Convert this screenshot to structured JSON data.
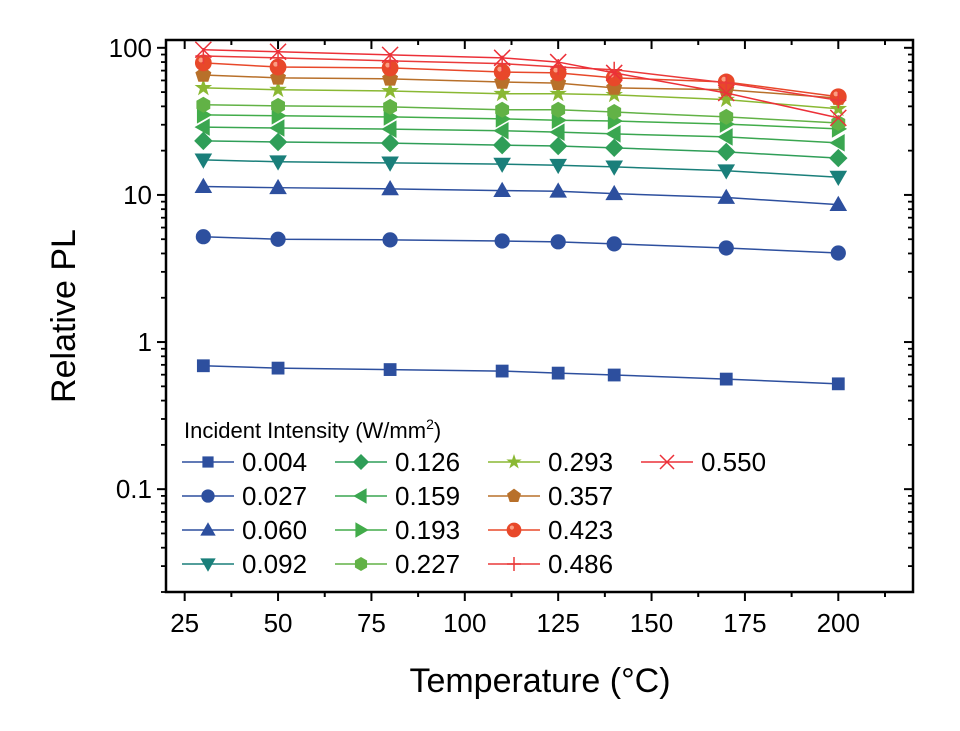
{
  "chart_data": {
    "type": "line",
    "title": "",
    "xlabel": "Temperature (°C)",
    "ylabel": "Relative PL",
    "xlim": [
      20,
      220
    ],
    "ylim": [
      0.02,
      113
    ],
    "yscale": "log",
    "grid": false,
    "x_ticks": [
      25,
      50,
      75,
      100,
      125,
      150,
      175,
      200
    ],
    "x_tick_labels": [
      "25",
      "50",
      "75",
      "100",
      "125",
      "150",
      "175",
      "200"
    ],
    "y_ticks": [
      0.1,
      1,
      10,
      100
    ],
    "y_tick_labels": [
      "0.1",
      "1",
      "10",
      "100"
    ],
    "legend": {
      "title": "Incident Intensity (W/mm",
      "title_sup": "2",
      "title_end": ")",
      "placement": "bottom-left"
    },
    "x": [
      30,
      50,
      80,
      110,
      125,
      140,
      170,
      200
    ],
    "series": [
      {
        "name": "0.004",
        "marker": "square",
        "color": "#2d4f9e",
        "values": [
          0.69,
          0.665,
          0.65,
          0.635,
          0.615,
          0.597,
          0.56,
          0.52
        ]
      },
      {
        "name": "0.027",
        "marker": "circle",
        "color": "#2d4f9e",
        "values": [
          5.2,
          5.0,
          4.95,
          4.86,
          4.8,
          4.65,
          4.36,
          4.03
        ]
      },
      {
        "name": "0.060",
        "marker": "triangle-up",
        "color": "#2d4f9e",
        "values": [
          11.4,
          11.2,
          11.0,
          10.7,
          10.6,
          10.2,
          9.6,
          8.6
        ]
      },
      {
        "name": "0.092",
        "marker": "triangle-down",
        "color": "#1a7f7a",
        "values": [
          17.3,
          16.8,
          16.5,
          16.2,
          15.9,
          15.5,
          14.6,
          13.2
        ]
      },
      {
        "name": "0.126",
        "marker": "diamond",
        "color": "#2f9e58",
        "values": [
          23.3,
          22.9,
          22.5,
          21.8,
          21.5,
          20.9,
          19.6,
          17.8
        ]
      },
      {
        "name": "0.159",
        "marker": "triangle-left",
        "color": "#3aa650",
        "values": [
          28.9,
          28.5,
          28.0,
          27.3,
          26.7,
          26.0,
          24.8,
          22.6
        ]
      },
      {
        "name": "0.193",
        "marker": "triangle-right",
        "color": "#42ac4a",
        "values": [
          35,
          34.5,
          33.9,
          32.9,
          32.2,
          31.8,
          30.3,
          28.1
        ]
      },
      {
        "name": "0.227",
        "marker": "hexagon",
        "color": "#62b246",
        "values": [
          41,
          40.3,
          39.7,
          37.9,
          37.9,
          36.6,
          33.9,
          30.8
        ]
      },
      {
        "name": "0.293",
        "marker": "star",
        "color": "#8ab833",
        "values": [
          53.4,
          51.9,
          50.9,
          48.7,
          48.7,
          47.9,
          44.4,
          38.5
        ]
      },
      {
        "name": "0.357",
        "marker": "pentagon",
        "color": "#b8702a",
        "values": [
          65.4,
          62.5,
          61.5,
          58.6,
          57.5,
          53.4,
          51.9,
          45.5
        ]
      },
      {
        "name": "0.423",
        "marker": "sphere",
        "color": "#e8482a",
        "values": [
          79,
          74,
          73,
          68.5,
          67.5,
          62.5,
          58.6,
          46.5
        ]
      },
      {
        "name": "0.486",
        "marker": "plus",
        "color": "#ea3a3a",
        "values": [
          88,
          85.5,
          81.5,
          78,
          74,
          71,
          57.8,
          44
        ]
      },
      {
        "name": "0.550",
        "marker": "x",
        "color": "#ec3038",
        "values": [
          97,
          94,
          89.5,
          85.5,
          80,
          67.5,
          49.3,
          33.4
        ]
      }
    ]
  }
}
